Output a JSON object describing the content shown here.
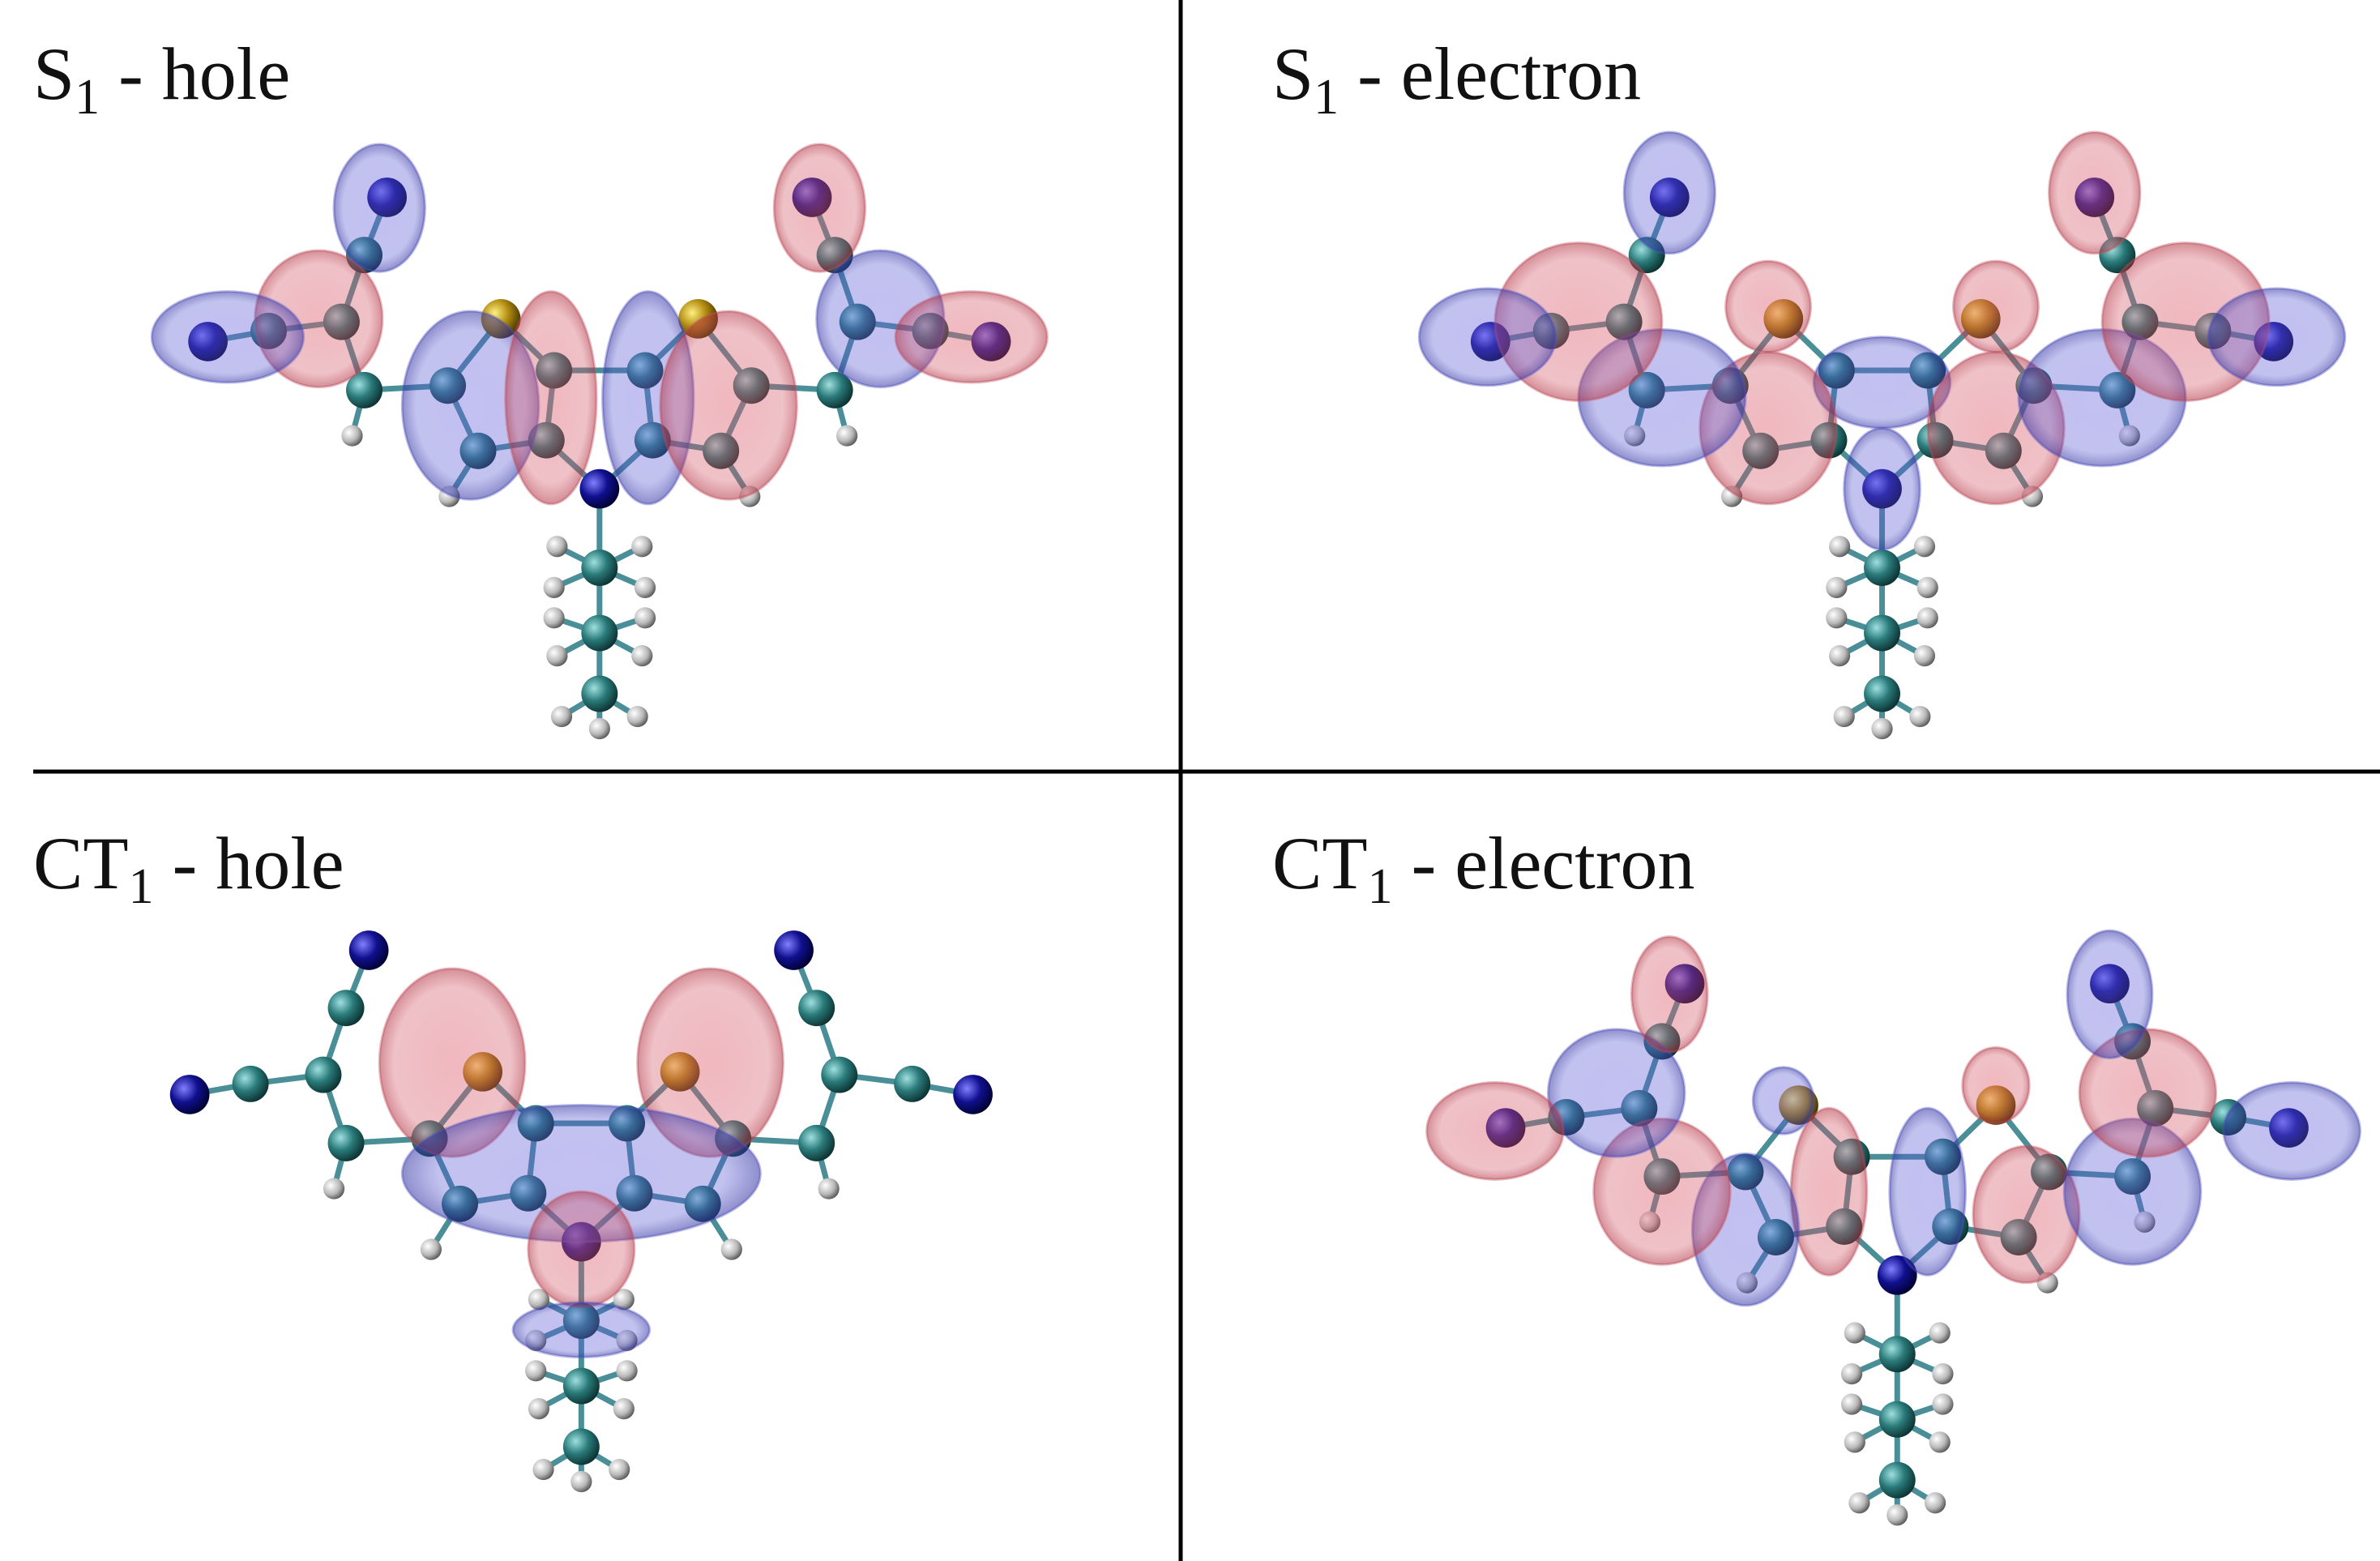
{
  "panels": [
    {
      "main": "S",
      "sub": "1",
      "rest": " - hole"
    },
    {
      "main": "S",
      "sub": "1",
      "rest": " - electron"
    },
    {
      "main": "CT",
      "sub": "1",
      "rest": " - hole"
    },
    {
      "main": "CT",
      "sub": "1",
      "rest": " - electron"
    }
  ]
}
